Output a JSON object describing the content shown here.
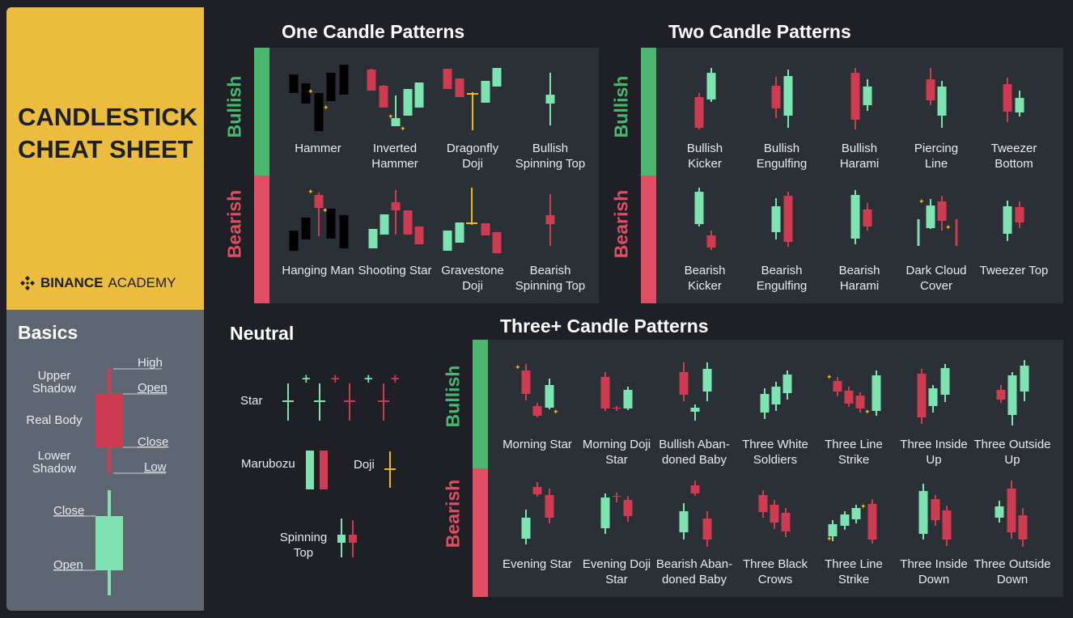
{
  "title": {
    "line1": "CANDLESTICK",
    "line2": "CHEAT SHEET"
  },
  "brand": {
    "name": "BINANCE",
    "suffix": "ACADEMY"
  },
  "colors": {
    "bullish": "#4ab76f",
    "bearish": "#e04e63",
    "doji": "#f0b90b",
    "candle_green": "#7de3b0",
    "candle_red": "#cf3b50"
  },
  "basics": {
    "heading": "Basics",
    "upper_shadow": "Upper Shadow",
    "real_body": "Real Body",
    "lower_shadow": "Lower Shadow",
    "high": "High",
    "open": "Open",
    "close": "Close",
    "low": "Low",
    "close2": "Close",
    "open2": "Open"
  },
  "one_candle": {
    "heading": "One Candle Patterns",
    "bullish_label": "Bullish",
    "bearish_label": "Bearish",
    "bullish": [
      "Hammer",
      "Inverted Hammer",
      "Dragonfly Doji",
      "Bullish Spinning Top"
    ],
    "bearish": [
      "Hanging Man",
      "Shooting Star",
      "Gravestone Doji",
      "Bearish Spinning Top"
    ]
  },
  "two_candle": {
    "heading": "Two Candle Patterns",
    "bullish_label": "Bullish",
    "bearish_label": "Bearish",
    "bullish": [
      "Bullish Kicker",
      "Bullish Engulfing",
      "Bullish Harami",
      "Piercing Line",
      "Tweezer Bottom"
    ],
    "bearish": [
      "Bearish Kicker",
      "Bearish Engulfing",
      "Bearish Harami",
      "Dark Cloud Cover",
      "Tweezer Top"
    ]
  },
  "neutral": {
    "heading": "Neutral",
    "star": "Star",
    "marubozu": "Marubozu",
    "doji": "Doji",
    "spinning_top": "Spinning Top"
  },
  "three_candle": {
    "heading": "Three+ Candle Patterns",
    "bullish_label": "Bullish",
    "bearish_label": "Bearish",
    "bullish": [
      "Morning Star",
      "Morning Doji Star",
      "Bullish Aban- doned Baby",
      "Three White Soldiers",
      "Three Line Strike",
      "Three Inside Up",
      "Three Outside Up"
    ],
    "bearish": [
      "Evening Star",
      "Evening Doji Star",
      "Bearish Aban- doned Baby",
      "Three Black Crows",
      "Three Line Strike",
      "Three Inside Down",
      "Three Outside Down"
    ]
  }
}
